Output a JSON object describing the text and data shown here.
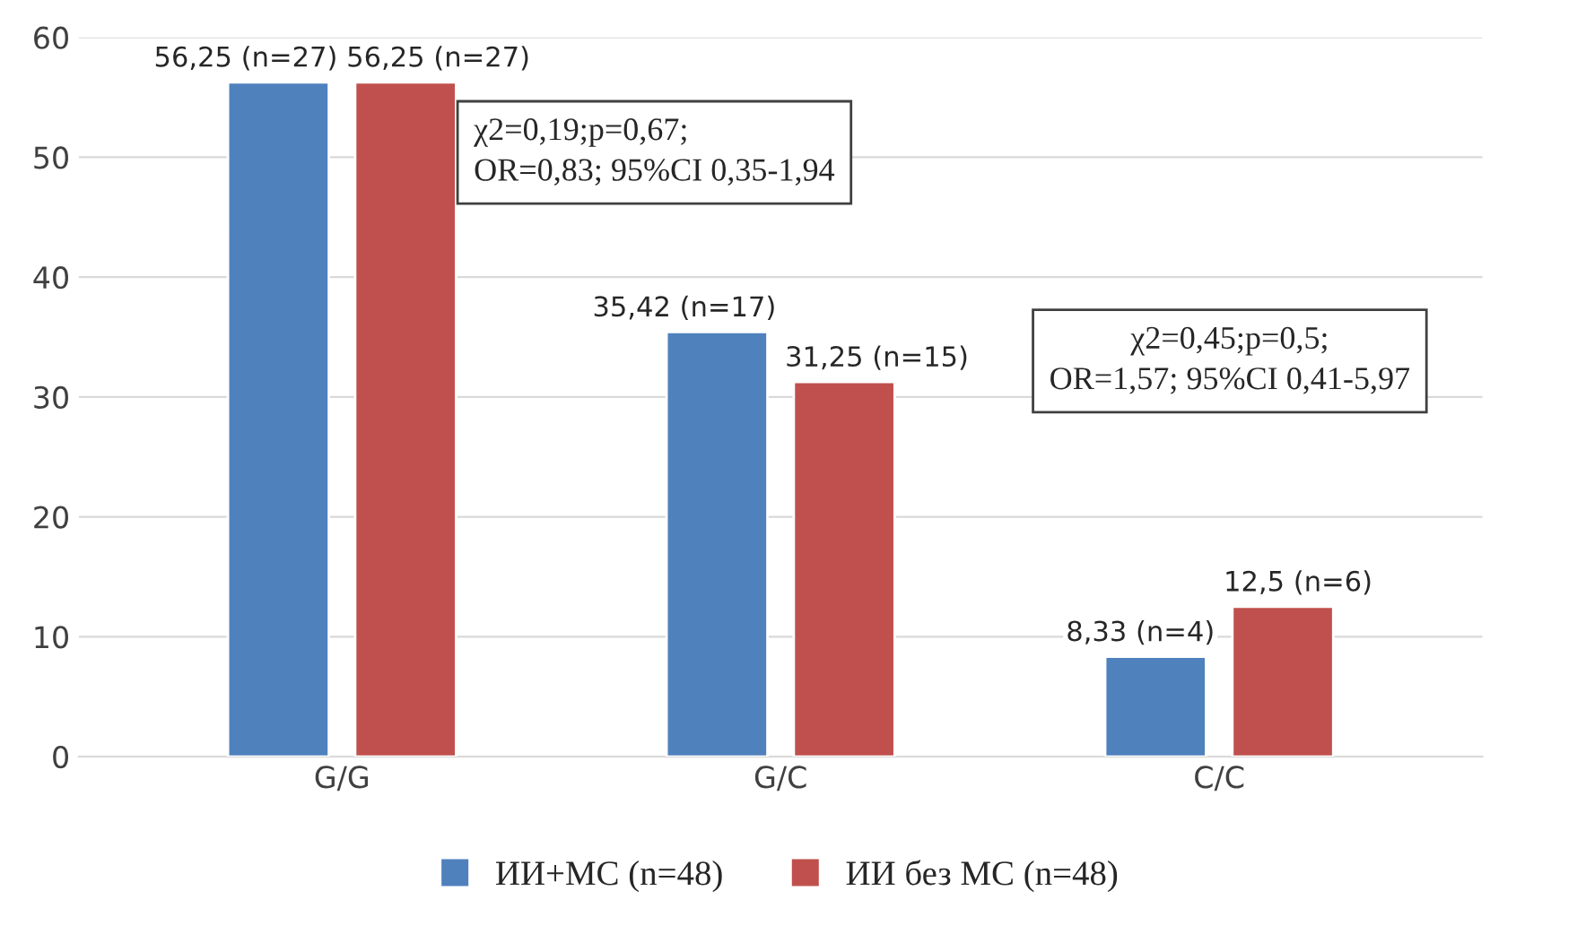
{
  "chart_data": {
    "type": "bar",
    "categories": [
      "G/G",
      "G/C",
      "C/C"
    ],
    "series": [
      {
        "name": "ИИ+МС (n=48)",
        "color": "#4f81bd",
        "values": [
          56.25,
          35.42,
          8.33
        ],
        "value_labels": [
          "56,25 (n=27)",
          "35,42 (n=17)",
          "8,33 (n=4)"
        ]
      },
      {
        "name": "ИИ без МС (n=48)",
        "color": "#c0504d",
        "values": [
          56.25,
          31.25,
          12.5
        ],
        "value_labels": [
          "56,25 (n=27)",
          "31,25 (n=15)",
          "12,5 (n=6)"
        ]
      }
    ],
    "ylim": [
      0,
      60
    ],
    "yticks": [
      0,
      10,
      20,
      30,
      40,
      50,
      60
    ],
    "grid": "y",
    "legend": "bottom",
    "annotations": [
      "χ2=0,19;p=0,67;\nOR=0,83; 95%CI 0,35-1,94",
      "χ2=0,45;p=0,5;\nOR=1,57; 95%CI 0,41-5,97"
    ]
  }
}
